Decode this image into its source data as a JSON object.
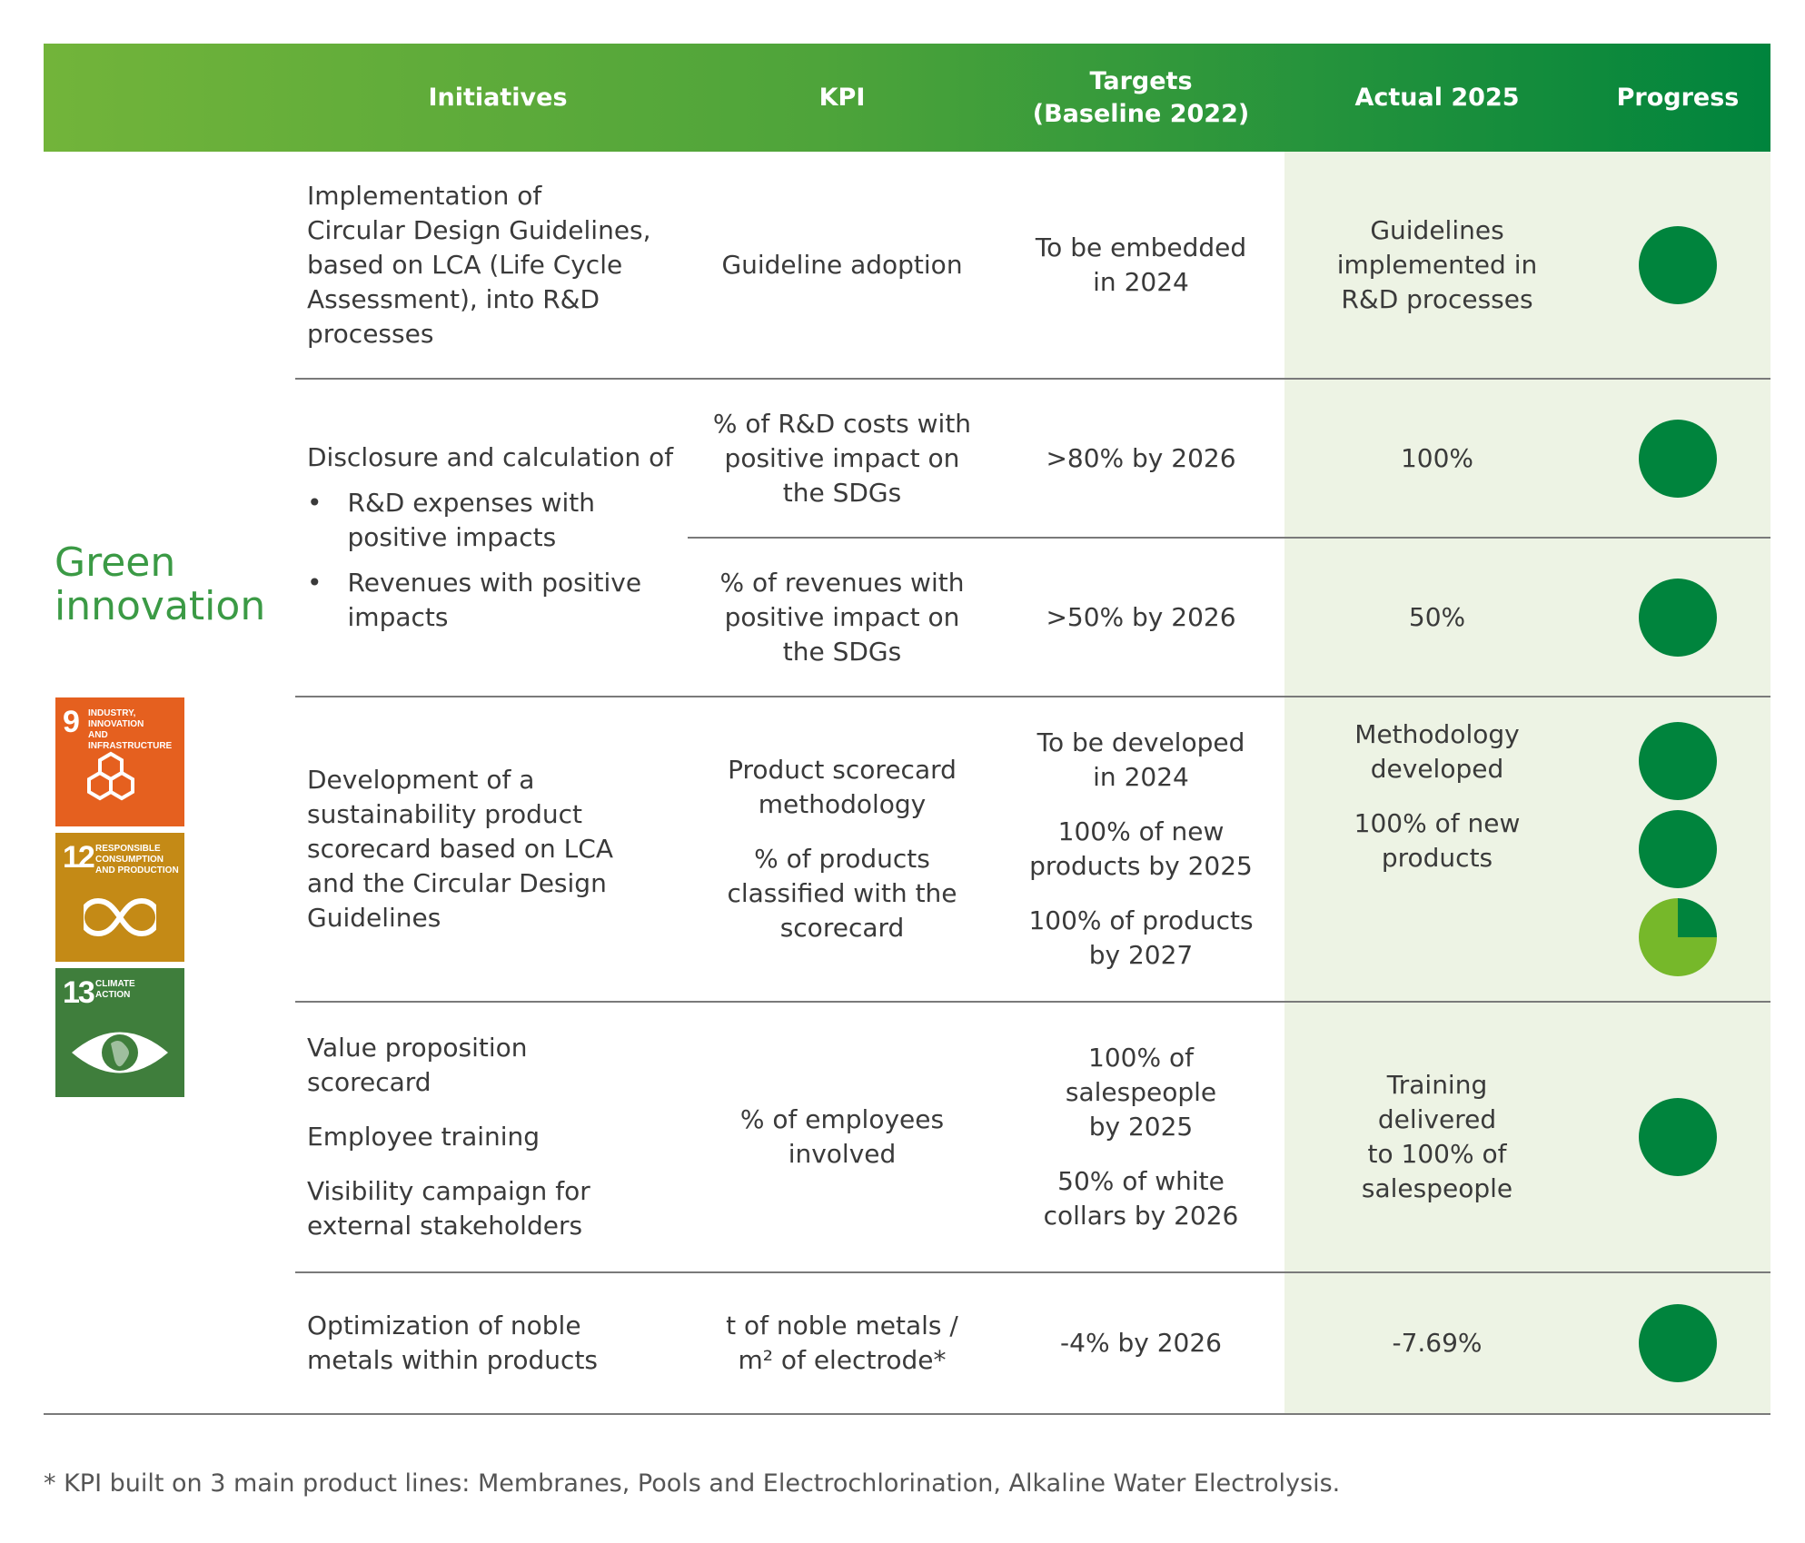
{
  "header": {
    "initiatives": "Initiatives",
    "kpi": "KPI",
    "targets": "Targets\n(Baseline 2022)",
    "actual": "Actual 2025",
    "progress": "Progress"
  },
  "section": {
    "title": "Green\ninnovation",
    "sdgs": [
      {
        "number": "9",
        "label": "INDUSTRY, INNOVATION\nAND INFRASTRUCTURE",
        "color": "#e5601f",
        "icon": "cubes-icon"
      },
      {
        "number": "12",
        "label": "RESPONSIBLE\nCONSUMPTION\nAND PRODUCTION",
        "color": "#c48a16",
        "icon": "infinity-icon"
      },
      {
        "number": "13",
        "label": "CLIMATE\nACTION",
        "color": "#3f7e3c",
        "icon": "eye-globe-icon"
      }
    ]
  },
  "rows": [
    {
      "initiative": "Implementation of\nCircular Design Guidelines,\nbased on LCA (Life Cycle\nAssessment), into R&D\nprocesses",
      "kpi": "Guideline adoption",
      "target": "To be embedded\nin 2024",
      "actual": "Guidelines\nimplemented in\nR&D processes",
      "progress": [
        1
      ]
    },
    {
      "initiative": "Disclosure and calculation of",
      "bullets": [
        "R&D expenses with\npositive impacts",
        "Revenues with positive\nimpacts"
      ],
      "sub": [
        {
          "kpi": "% of R&D costs with\npositive impact on\nthe SDGs",
          "target": ">80% by 2026",
          "actual": "100%",
          "progress": [
            1
          ]
        },
        {
          "kpi": "% of revenues with\npositive impact on\nthe SDGs",
          "target": ">50% by 2026",
          "actual": "50%",
          "progress": [
            1
          ]
        }
      ]
    },
    {
      "initiative": "Development of a\nsustainability product\nscorecard based on LCA\nand the Circular Design\nGuidelines",
      "kpis": [
        "Product scorecard\nmethodology",
        "% of products\nclassified with the\nscorecard"
      ],
      "targets": [
        "To be developed\nin 2024",
        "100% of new\nproducts by 2025",
        "100% of products\nby 2027"
      ],
      "actuals": [
        "Methodology\ndeveloped",
        "100% of new\nproducts"
      ],
      "progress": [
        1,
        1,
        0.25
      ]
    },
    {
      "initiatives": [
        "Value proposition\nscorecard",
        "Employee training",
        "Visibility campaign for\nexternal stakeholders"
      ],
      "kpi": "% of employees\ninvolved",
      "targets": [
        "100% of\nsalespeople\nby 2025",
        "50% of white\ncollars by 2026"
      ],
      "actual": "Training\ndelivered\nto 100% of\nsalespeople",
      "progress": [
        1
      ]
    },
    {
      "initiative": "Optimization of noble\nmetals within products",
      "kpi": "t of noble metals /\nm² of electrode*",
      "target": "-4% by 2026",
      "actual": "-7.69%",
      "progress": [
        1
      ]
    }
  ],
  "footnote": "* KPI built on 3 main product lines: Membranes, Pools and Electrochlorination, Alkaline Water Electrolysis.",
  "colors": {
    "complete": "#00843d",
    "partial": "#76b82a",
    "actual_bg": "#edf3e4"
  }
}
